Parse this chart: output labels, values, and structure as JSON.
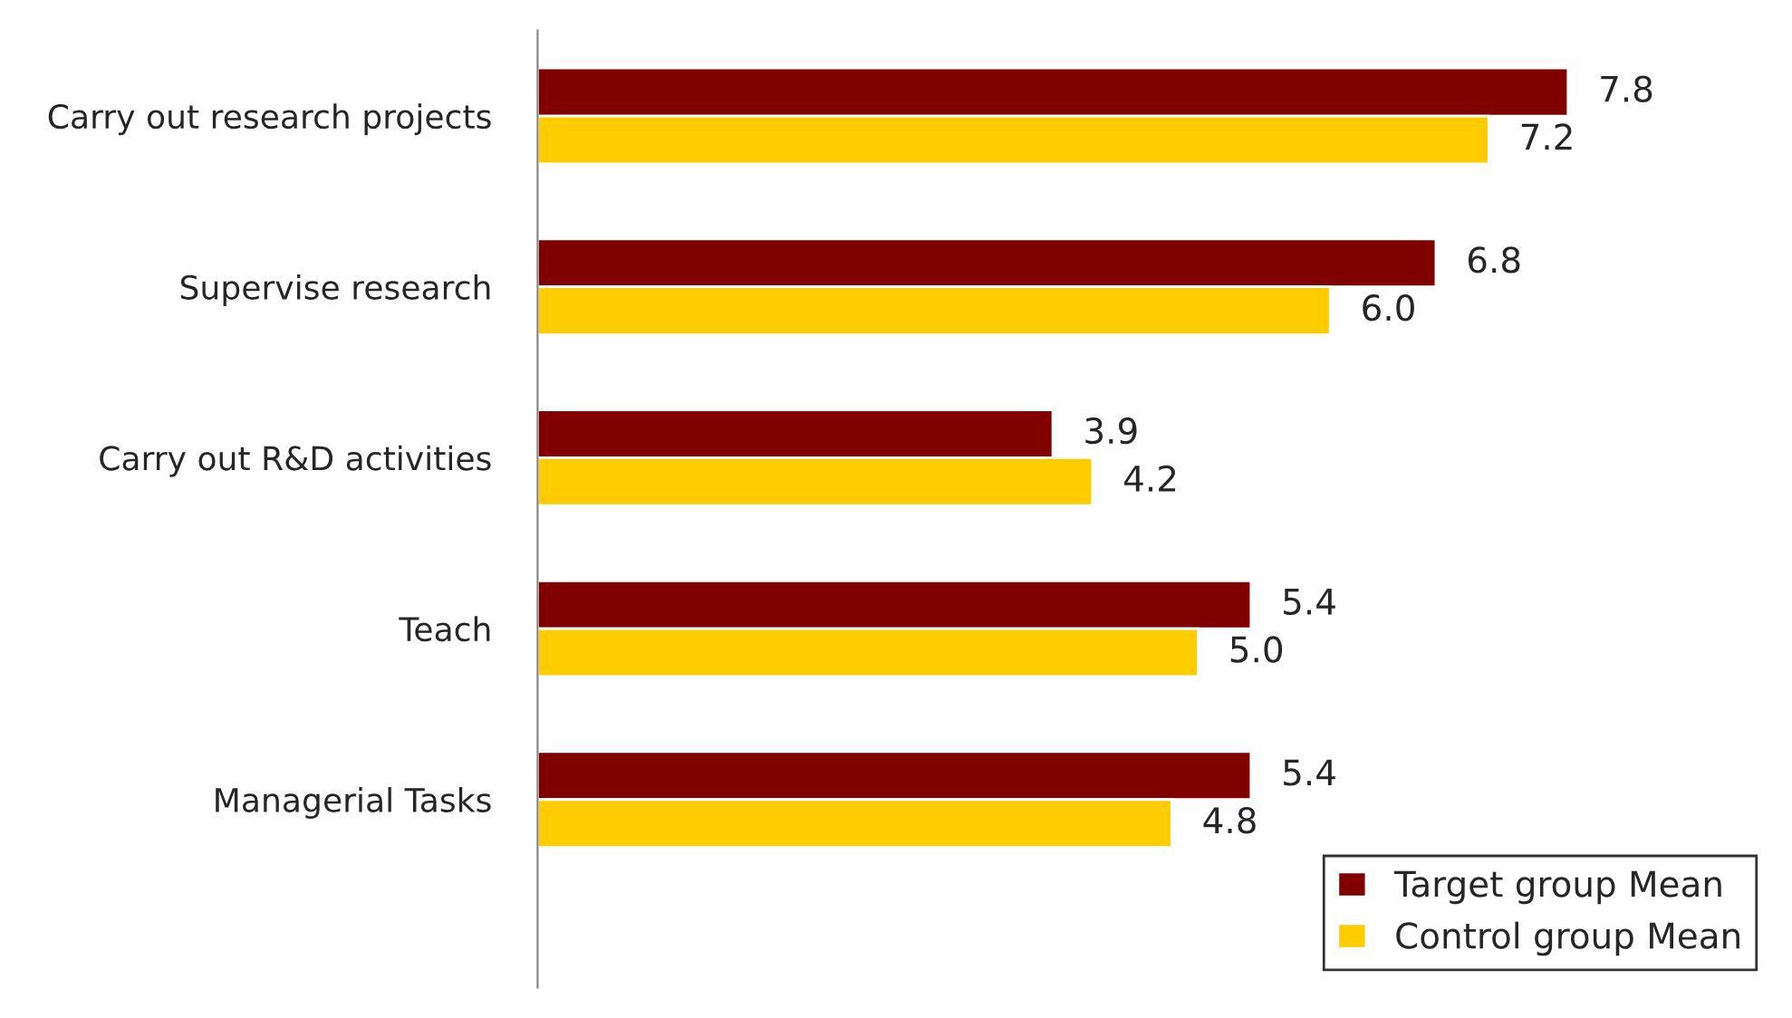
{
  "chart_data": {
    "type": "bar",
    "orientation": "horizontal",
    "categories": [
      "Carry out research projects",
      "Supervise research",
      "Carry out R&D activities",
      "Teach",
      "Managerial Tasks"
    ],
    "series": [
      {
        "name": "Target group Mean",
        "color": "#800000",
        "values": [
          7.8,
          6.8,
          3.9,
          5.4,
          5.4
        ],
        "value_labels": [
          "7.8",
          "6.8",
          "3.9",
          "5.4",
          "5.4"
        ]
      },
      {
        "name": "Control group Mean",
        "color": "#ffcc00",
        "values": [
          7.2,
          6.0,
          4.2,
          5.0,
          4.8
        ],
        "value_labels": [
          "7.2",
          "6.0",
          "4.2",
          "5.0",
          "4.8"
        ]
      }
    ],
    "legend": "bottom right",
    "grid": false
  }
}
